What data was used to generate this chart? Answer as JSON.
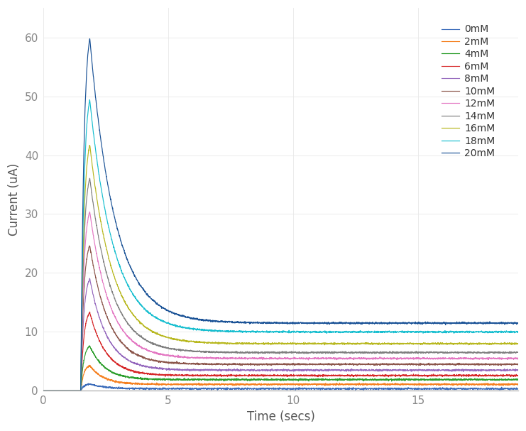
{
  "title": "",
  "xlabel": "Time (secs)",
  "ylabel": "Current (uA)",
  "xlim": [
    0,
    19
  ],
  "ylim": [
    0,
    65
  ],
  "xticks": [
    0,
    5,
    10,
    15
  ],
  "yticks": [
    0,
    10,
    20,
    30,
    40,
    50,
    60
  ],
  "background_color": "#ffffff",
  "grid_color": "#e8e8e8",
  "series": [
    {
      "label": "0mM",
      "color": "#3b6cba",
      "peak": 1.2,
      "A": 0.8,
      "tau": 0.6,
      "ss": 0.35
    },
    {
      "label": "2mM",
      "color": "#f58020",
      "peak": 4.5,
      "A": 3.5,
      "tau": 0.55,
      "ss": 1.1
    },
    {
      "label": "4mM",
      "color": "#2c9e2c",
      "peak": 8.0,
      "A": 6.2,
      "tau": 0.6,
      "ss": 1.9
    },
    {
      "label": "6mM",
      "color": "#d62728",
      "peak": 14.0,
      "A": 11.5,
      "tau": 0.65,
      "ss": 2.6
    },
    {
      "label": "8mM",
      "color": "#9467bd",
      "peak": 20.0,
      "A": 16.5,
      "tau": 0.7,
      "ss": 3.5
    },
    {
      "label": "10mM",
      "color": "#8c564b",
      "peak": 26.0,
      "A": 21.5,
      "tau": 0.75,
      "ss": 4.5
    },
    {
      "label": "12mM",
      "color": "#e377c2",
      "peak": 32.0,
      "A": 26.5,
      "tau": 0.8,
      "ss": 5.5
    },
    {
      "label": "14mM",
      "color": "#7f7f7f",
      "peak": 38.0,
      "A": 32.0,
      "tau": 0.85,
      "ss": 6.5
    },
    {
      "label": "16mM",
      "color": "#b8b820",
      "peak": 44.0,
      "A": 37.0,
      "tau": 0.9,
      "ss": 8.0
    },
    {
      "label": "18mM",
      "color": "#17becf",
      "peak": 52.0,
      "A": 43.0,
      "tau": 0.95,
      "ss": 10.0
    },
    {
      "label": "20mM",
      "color": "#1a5296",
      "peak": 63.0,
      "A": 52.0,
      "tau": 1.0,
      "ss": 11.5
    }
  ],
  "t_start": 0.0,
  "t_end": 19.0,
  "t_stim": 1.5,
  "rise_tau": 0.12,
  "n_points": 3000,
  "noise_std": 0.07
}
